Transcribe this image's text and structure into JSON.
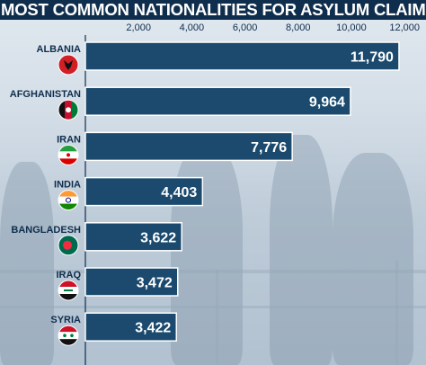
{
  "chart_data": {
    "type": "bar",
    "orientation": "horizontal",
    "title": "MOST COMMON NATIONALITIES FOR ASYLUM CLAIMS",
    "categories": [
      "ALBANIA",
      "AFGHANISTAN",
      "IRAN",
      "INDIA",
      "BANGLADESH",
      "IRAQ",
      "SYRIA"
    ],
    "values": [
      11790,
      9964,
      7776,
      4403,
      3622,
      3472,
      3422
    ],
    "value_labels": [
      "11,790",
      "9,964",
      "7,776",
      "4,403",
      "3,622",
      "3,472",
      "3,422"
    ],
    "x_ticks": [
      2000,
      4000,
      6000,
      8000,
      10000,
      12000
    ],
    "x_tick_labels": [
      "2,000",
      "4,000",
      "6,000",
      "8,000",
      "10,000",
      "12,000"
    ],
    "xlim": [
      0,
      12400
    ],
    "axis_position": "top",
    "grid": false,
    "bar_color": "#1b4a6e",
    "bar_border_color": "#ffffff",
    "text_color": "#0f2e4d",
    "flags": [
      "albania-flag-icon",
      "afghanistan-flag-icon",
      "iran-flag-icon",
      "india-flag-icon",
      "bangladesh-flag-icon",
      "iraq-flag-icon",
      "syria-flag-icon"
    ]
  }
}
